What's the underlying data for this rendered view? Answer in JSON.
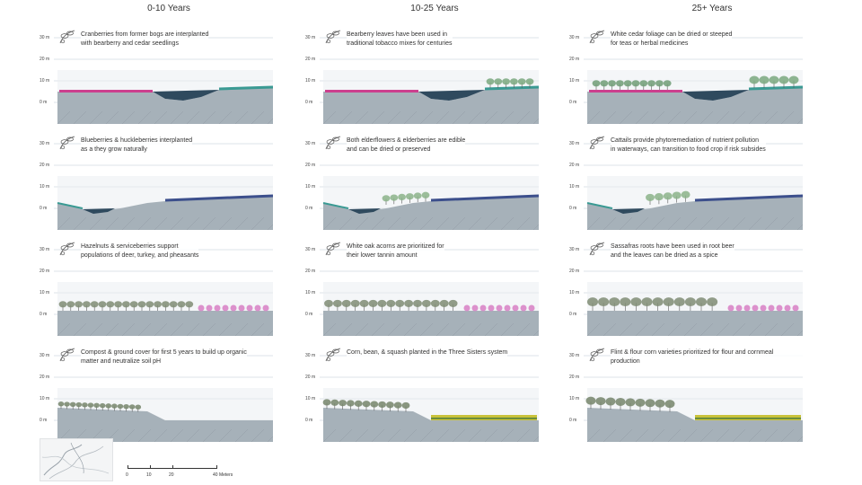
{
  "columns": [
    {
      "title": "0-10 Years"
    },
    {
      "title": "10-25 Years"
    },
    {
      "title": "25+ Years"
    }
  ],
  "axis_labels": [
    "30 m",
    "20 m",
    "10 m",
    "0 m"
  ],
  "rows": [
    {
      "profile": "bog",
      "captions": [
        {
          "text_1": "Cranberries from former bogs are interplanted",
          "text_2": "with bearberry and cedar seedlings",
          "icon": "cranberry-icon"
        },
        {
          "text_1": "Bearberry leaves have been used in",
          "text_2": "traditional tobacco mixes for centuries",
          "icon": "bearberry-icon"
        },
        {
          "text_1": "White cedar foliage can be dried or steeped",
          "text_2": "for teas or herbal medicines",
          "icon": "cedar-icon"
        }
      ]
    },
    {
      "profile": "wetland",
      "captions": [
        {
          "text_1": "Blueberries & huckleberries interplanted",
          "text_2": "as a they grow naturally",
          "icon": "blueberry-icon"
        },
        {
          "text_1": "Both elderflowers & elderberries are edible",
          "text_2": "and can be dried or preserved",
          "icon": "elderberry-icon"
        },
        {
          "text_1": "Cattails provide phytoremediation of nutrient pollution",
          "text_2": "in waterways, can transition to food crop if risk subsides",
          "icon": "cattail-icon"
        }
      ]
    },
    {
      "profile": "forest",
      "captions": [
        {
          "text_1": "Hazelnuts & serviceberries support",
          "text_2": "populations of deer, turkey, and pheasants",
          "icon": "hazelnut-icon"
        },
        {
          "text_1": "White oak acorns are prioritized for",
          "text_2": "their lower tannin amount",
          "icon": "acorn-icon"
        },
        {
          "text_1": "Sassafras roots have been used in root beer",
          "text_2": "and the leaves can be dried as a spice",
          "icon": "sassafras-icon"
        }
      ]
    },
    {
      "profile": "field",
      "captions": [
        {
          "text_1": "Compost & ground cover for first 5 years to build up organic",
          "text_2": "matter and neutralize soil pH",
          "icon": "compost-icon"
        },
        {
          "text_1": "Corn, bean, & squash planted in the Three Sisters system",
          "text_2": "",
          "icon": "corn-icon"
        },
        {
          "text_1": "Flint & flour corn varieties prioritized for flour and cornmeal production",
          "text_2": "",
          "icon": "flint-corn-icon"
        }
      ]
    }
  ],
  "scale_bar": {
    "labels": [
      "0",
      "10",
      "20",
      "40 Meters"
    ]
  },
  "colors": {
    "gridline": "#b9c7d3",
    "ground": "#8e9aa3",
    "water": "#2f4a5e",
    "cranberry": "#cc3f8e",
    "teal": "#3a9a93",
    "tree": "#6e8a5a",
    "blue_row": "#3c4f8c",
    "pink_shrub": "#d77fc4",
    "corn": "#c9c23a"
  }
}
